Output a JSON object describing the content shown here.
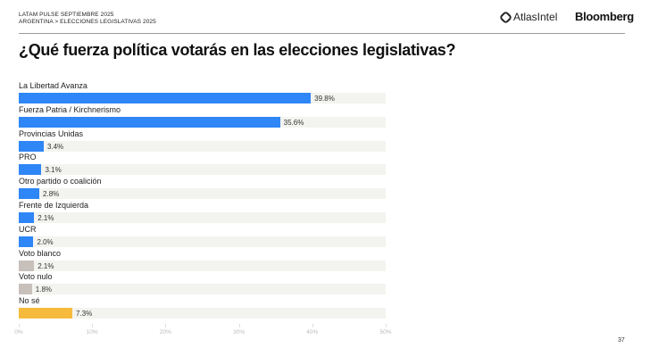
{
  "header": {
    "line1": "LATAM PULSE SEPTIEMBRE 2025",
    "line2": "ARGENTINA > ELECCIONES LEGISLATIVAS 2025",
    "logo_atlas": "AtlasIntel",
    "logo_bloomberg": "Bloomberg"
  },
  "page_number": "37",
  "chart_data": {
    "type": "bar",
    "orientation": "horizontal",
    "title": "¿Qué fuerza política votarás en las elecciones legislativas?",
    "categories": [
      "La Libertad Avanza",
      "Fuerza Patria / Kirchnerismo",
      "Provincias Unidas",
      "PRO",
      "Otro partido o coalición",
      "Frente de Izquierda",
      "UCR",
      "Voto blanco",
      "Voto nulo",
      "No sé"
    ],
    "values": [
      39.8,
      35.6,
      3.4,
      3.1,
      2.8,
      2.1,
      2.0,
      2.1,
      1.8,
      7.3
    ],
    "value_labels": [
      "39.8%",
      "35.6%",
      "3.4%",
      "3.1%",
      "2.8%",
      "2.1%",
      "2.0%",
      "2.1%",
      "1.8%",
      "7.3%"
    ],
    "colors": [
      "#2f86f6",
      "#2f86f6",
      "#2f86f6",
      "#2f86f6",
      "#2f86f6",
      "#2f86f6",
      "#2f86f6",
      "#c8c0bb",
      "#c8c0bb",
      "#f6bb3d"
    ],
    "xlim": [
      0,
      50
    ],
    "xticks": [
      "0%",
      "10%",
      "20%",
      "30%",
      "40%",
      "50%"
    ],
    "grid": false,
    "legend": "none"
  }
}
